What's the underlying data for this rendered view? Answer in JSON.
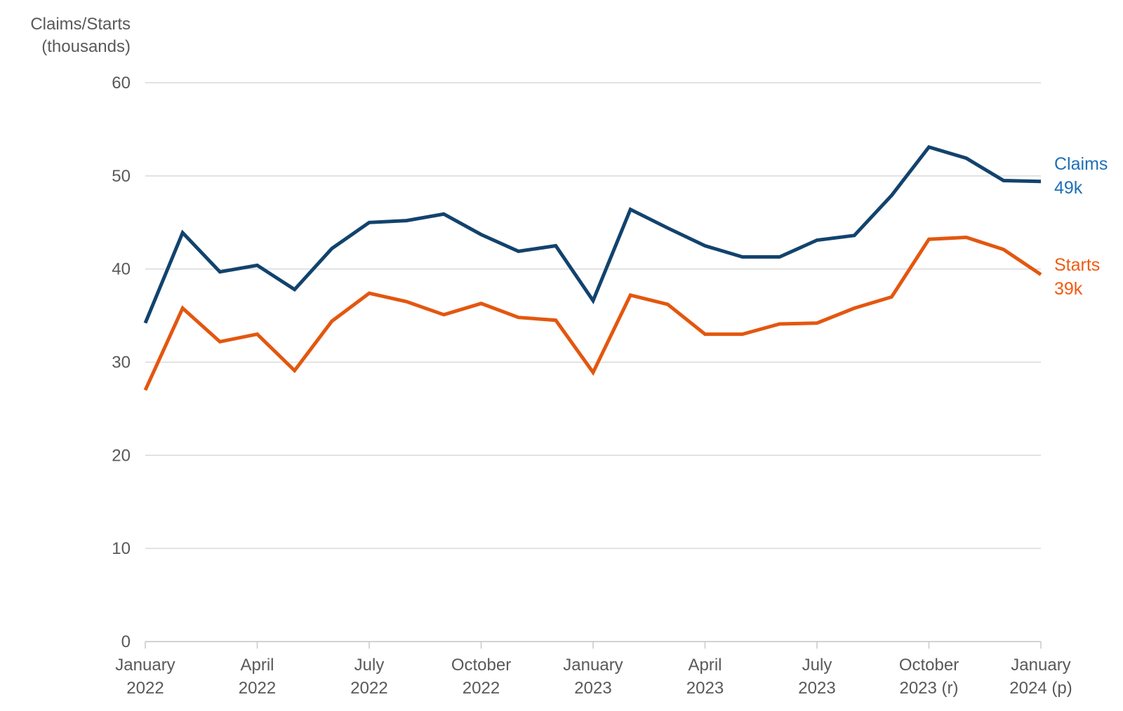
{
  "chart_data": {
    "type": "line",
    "title": "",
    "ylabel_lines": [
      "Claims/Starts",
      "(thousands)"
    ],
    "xlabel": "",
    "ylim": [
      0,
      60
    ],
    "y_ticks": [
      0,
      10,
      20,
      30,
      40,
      50,
      60
    ],
    "grid": "horizontal",
    "legend_position": "right of line ends",
    "x_unit": "month",
    "months": [
      "2022-01",
      "2022-02",
      "2022-03",
      "2022-04",
      "2022-05",
      "2022-06",
      "2022-07",
      "2022-08",
      "2022-09",
      "2022-10",
      "2022-11",
      "2022-12",
      "2023-01",
      "2023-02",
      "2023-03",
      "2023-04",
      "2023-05",
      "2023-06",
      "2023-07",
      "2023-08",
      "2023-09",
      "2023-10",
      "2023-11",
      "2023-12",
      "2024-01"
    ],
    "x_tick_labels": [
      {
        "month_index": 0,
        "line1": "January",
        "line2": "2022"
      },
      {
        "month_index": 3,
        "line1": "April",
        "line2": "2022"
      },
      {
        "month_index": 6,
        "line1": "July",
        "line2": "2022"
      },
      {
        "month_index": 9,
        "line1": "October",
        "line2": "2022"
      },
      {
        "month_index": 12,
        "line1": "January",
        "line2": "2023"
      },
      {
        "month_index": 15,
        "line1": "April",
        "line2": "2023"
      },
      {
        "month_index": 18,
        "line1": "July",
        "line2": "2023"
      },
      {
        "month_index": 21,
        "line1": "October",
        "line2": "2023 (r)"
      },
      {
        "month_index": 24,
        "line1": "January",
        "line2": "2024 (p)"
      }
    ],
    "series": [
      {
        "name": "Claims",
        "color": "#12436d",
        "label_color": "#1d70b8",
        "end_label": {
          "name": "Claims",
          "value": "49k"
        },
        "values": [
          34.2,
          43.9,
          39.7,
          40.4,
          37.8,
          42.2,
          45.0,
          45.2,
          45.9,
          43.7,
          41.9,
          42.5,
          36.6,
          46.4,
          44.4,
          42.5,
          41.3,
          41.3,
          43.1,
          43.6,
          47.9,
          53.1,
          51.9,
          49.5,
          49.4
        ]
      },
      {
        "name": "Starts",
        "color": "#e3570f",
        "label_color": "#f05b11",
        "end_label": {
          "name": "Starts",
          "value": "39k"
        },
        "values": [
          27.0,
          35.8,
          32.2,
          33.0,
          29.1,
          34.4,
          37.4,
          36.5,
          35.1,
          36.3,
          34.8,
          34.5,
          28.9,
          37.2,
          36.2,
          33.0,
          33.0,
          34.1,
          34.2,
          35.8,
          37.0,
          43.2,
          43.4,
          42.1,
          39.4
        ]
      }
    ]
  },
  "colors": {
    "axis_text": "#595959",
    "gridline": "#d9d9d9",
    "axis_line": "#c9c9c9",
    "background": "#ffffff"
  }
}
